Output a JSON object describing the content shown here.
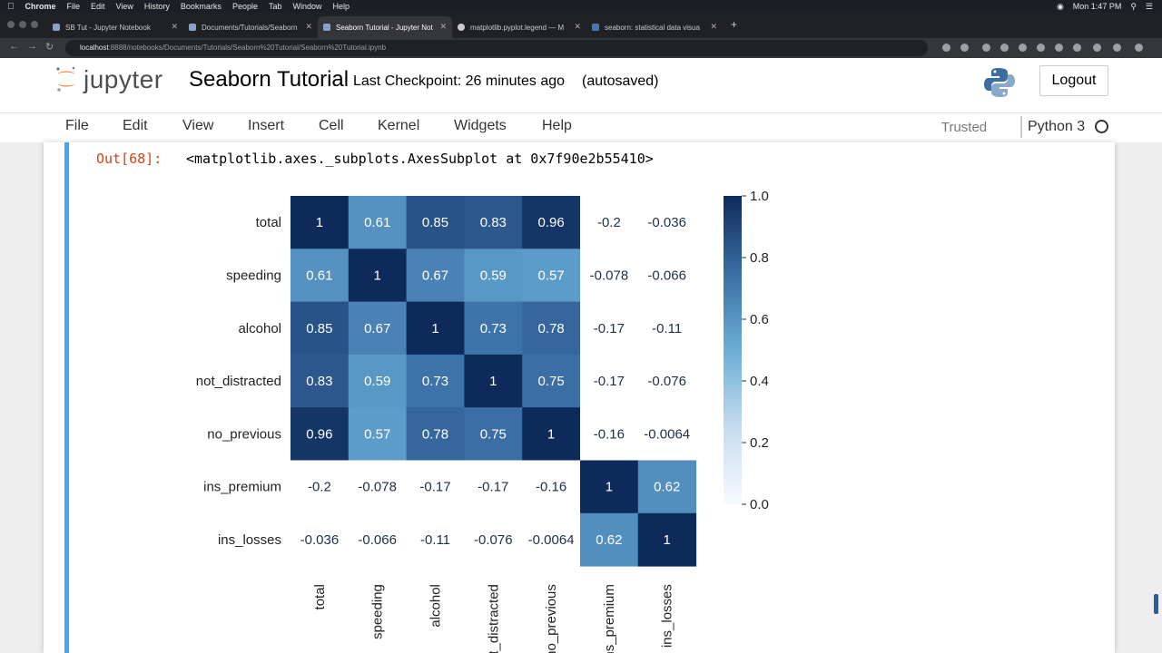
{
  "macos_menubar": {
    "app": "Chrome",
    "items": [
      "File",
      "Edit",
      "View",
      "History",
      "Bookmarks",
      "People",
      "Tab",
      "Window",
      "Help"
    ],
    "clock": "Mon 1:47 PM"
  },
  "browser": {
    "tabs": [
      {
        "label": "SB Tut - Jupyter Notebook"
      },
      {
        "label": "Documents/Tutorials/Seaborn"
      },
      {
        "label": "Seaborn Tutorial - Jupyter Not"
      },
      {
        "label": "matplotlib.pyplot.legend — M"
      },
      {
        "label": "seaborn: statistical data visua"
      }
    ],
    "url_host": "localhost",
    "url_rest": ":8888/notebooks/Documents/Tutorials/Seaborn%20Tutorial/Seaborn%20Tutorial.ipynb"
  },
  "jupyter": {
    "logo_text": "jupyter",
    "notebook_title": "Seaborn Tutorial",
    "checkpoint": "Last Checkpoint: 26 minutes ago",
    "autosave": "(autosaved)",
    "logout": "Logout",
    "menu": [
      "File",
      "Edit",
      "View",
      "Insert",
      "Cell",
      "Kernel",
      "Widgets",
      "Help"
    ],
    "trusted": "Trusted",
    "kernel": "Python 3"
  },
  "cell": {
    "prompt": "Out[68]:",
    "output": "<matplotlib.axes._subplots.AxesSubplot at 0x7f90e2b55410>"
  },
  "colors": {
    "cmap_low": "#f7fbff",
    "cmap_high": "#0e2a5a",
    "cell_bar": "#42a5f5"
  },
  "chart_data": {
    "type": "heatmap",
    "rows": [
      "total",
      "speeding",
      "alcohol",
      "not_distracted",
      "no_previous",
      "ins_premium",
      "ins_losses"
    ],
    "columns": [
      "total",
      "speeding",
      "alcohol",
      "not_distracted",
      "no_previous",
      "ins_premium",
      "ins_losses"
    ],
    "values": [
      [
        1,
        0.61,
        0.85,
        0.83,
        0.96,
        -0.2,
        -0.036
      ],
      [
        0.61,
        1,
        0.67,
        0.59,
        0.57,
        -0.078,
        -0.066
      ],
      [
        0.85,
        0.67,
        1,
        0.73,
        0.78,
        -0.17,
        -0.11
      ],
      [
        0.83,
        0.59,
        0.73,
        1,
        0.75,
        -0.17,
        -0.076
      ],
      [
        0.96,
        0.57,
        0.78,
        0.75,
        1,
        -0.16,
        -0.0064
      ],
      [
        -0.2,
        -0.078,
        -0.17,
        -0.17,
        -0.16,
        1,
        0.62
      ],
      [
        -0.036,
        -0.066,
        -0.11,
        -0.076,
        -0.0064,
        0.62,
        1
      ]
    ],
    "annotations": [
      [
        "1",
        "0.61",
        "0.85",
        "0.83",
        "0.96",
        "-0.2",
        "-0.036"
      ],
      [
        "0.61",
        "1",
        "0.67",
        "0.59",
        "0.57",
        "-0.078",
        "-0.066"
      ],
      [
        "0.85",
        "0.67",
        "1",
        "0.73",
        "0.78",
        "-0.17",
        "-0.11"
      ],
      [
        "0.83",
        "0.59",
        "0.73",
        "1",
        "0.75",
        "-0.17",
        "-0.076"
      ],
      [
        "0.96",
        "0.57",
        "0.78",
        "0.75",
        "1",
        "-0.16",
        "-0.0064"
      ],
      [
        "-0.2",
        "-0.078",
        "-0.17",
        "-0.17",
        "-0.16",
        "1",
        "0.62"
      ],
      [
        "-0.036",
        "-0.066",
        "-0.11",
        "-0.076",
        "-0.0064",
        "0.62",
        "1"
      ]
    ],
    "colorbar": {
      "vmin": 0.0,
      "vmax": 1.0,
      "ticks": [
        "0.0",
        "0.2",
        "0.4",
        "0.6",
        "0.8",
        "1.0"
      ]
    },
    "colormap": "Blues",
    "values_below_vmin_rendered_white": true
  }
}
